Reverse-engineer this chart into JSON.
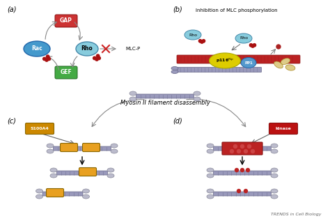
{
  "panel_a_label": "(a)",
  "panel_b_label": "(b)",
  "panel_c_label": "(c)",
  "panel_d_label": "(d)",
  "panel_b_title": "Inhibition of MLC phosphorylation",
  "panel_middle_title": "Myosin II filament disassembly",
  "panel_c_tag": "S100A4",
  "panel_d_tag": "kinase",
  "mlc_p_label": "MLC-P",
  "gap_label": "GAP",
  "rac_label": "Rac",
  "rho_label": "Rho",
  "gef_label": "GEF",
  "p116_label": "p116",
  "pp1_label": "PP1",
  "footer": "TRENDS in Cell Biology",
  "bg_color": "#ffffff",
  "gap_color": "#cc3333",
  "gef_color": "#44aa44",
  "rac_color": "#4499cc",
  "rho_color": "#88ccdd",
  "filament_color": "#9999bb",
  "filament_dark": "#666688",
  "myosin_head_color": "#bbbbcc",
  "rod_yellow": "#e8a020",
  "rod_red": "#bb2222",
  "p116_color": "#ddcc00",
  "actin_red": "#bb2222",
  "gdp_color": "#aa2222",
  "panel_tag_yellow_bg": "#cc8800",
  "panel_tag_red_bg": "#bb1111"
}
